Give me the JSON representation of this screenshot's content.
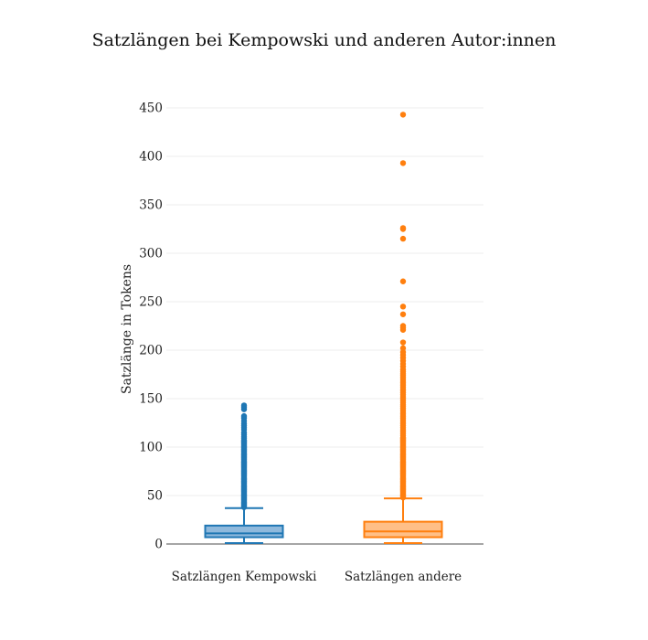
{
  "chart_data": {
    "type": "box",
    "title": "Satzlängen bei Kempowski und anderen Autor:innen",
    "ylabel": "Satzlänge in Tokens",
    "ylim": [
      0,
      450
    ],
    "yticks": [
      0,
      50,
      100,
      150,
      200,
      250,
      300,
      350,
      400,
      450
    ],
    "grid": true,
    "series": [
      {
        "name": "Satzlängen Kempowski",
        "color": "#1f77b4",
        "fill": "#8fb9dc",
        "min": 1,
        "q1": 7,
        "median": 11,
        "q3": 19,
        "upper_whisker": 37,
        "outliers": [
          38,
          39,
          40,
          41,
          42,
          43,
          44,
          45,
          46,
          47,
          48,
          49,
          50,
          51,
          52,
          53,
          54,
          55,
          56,
          57,
          58,
          59,
          60,
          61,
          62,
          63,
          64,
          65,
          66,
          67,
          68,
          69,
          70,
          71,
          72,
          73,
          74,
          75,
          76,
          77,
          78,
          79,
          80,
          81,
          82,
          83,
          84,
          85,
          86,
          87,
          88,
          89,
          90,
          91,
          92,
          93,
          94,
          95,
          96,
          97,
          98,
          99,
          100,
          101,
          102,
          103,
          104,
          105,
          106,
          107,
          109,
          111,
          113,
          115,
          118,
          120,
          122,
          124,
          127,
          130,
          132,
          139,
          141,
          143
        ]
      },
      {
        "name": "Satzlängen andere",
        "color": "#ff7f0e",
        "fill": "#ffbf87",
        "min": 1,
        "q1": 7,
        "median": 13,
        "q3": 23,
        "upper_whisker": 47,
        "outliers": [
          48,
          49,
          50,
          51,
          52,
          53,
          54,
          55,
          56,
          57,
          58,
          59,
          60,
          61,
          62,
          63,
          64,
          65,
          66,
          67,
          68,
          69,
          70,
          71,
          72,
          73,
          74,
          75,
          76,
          77,
          78,
          79,
          80,
          81,
          82,
          83,
          84,
          85,
          86,
          87,
          88,
          89,
          90,
          91,
          92,
          93,
          94,
          95,
          96,
          97,
          98,
          99,
          100,
          101,
          102,
          103,
          104,
          105,
          106,
          107,
          108,
          109,
          110,
          112,
          114,
          116,
          118,
          120,
          122,
          124,
          126,
          128,
          130,
          132,
          134,
          136,
          138,
          140,
          142,
          144,
          146,
          148,
          150,
          152,
          154,
          156,
          158,
          160,
          162,
          164,
          166,
          168,
          170,
          172,
          174,
          176,
          178,
          180,
          183,
          186,
          189,
          192,
          195,
          198,
          202,
          208,
          221,
          223,
          225,
          237,
          245,
          271,
          315,
          325,
          326,
          393,
          443
        ]
      }
    ]
  }
}
